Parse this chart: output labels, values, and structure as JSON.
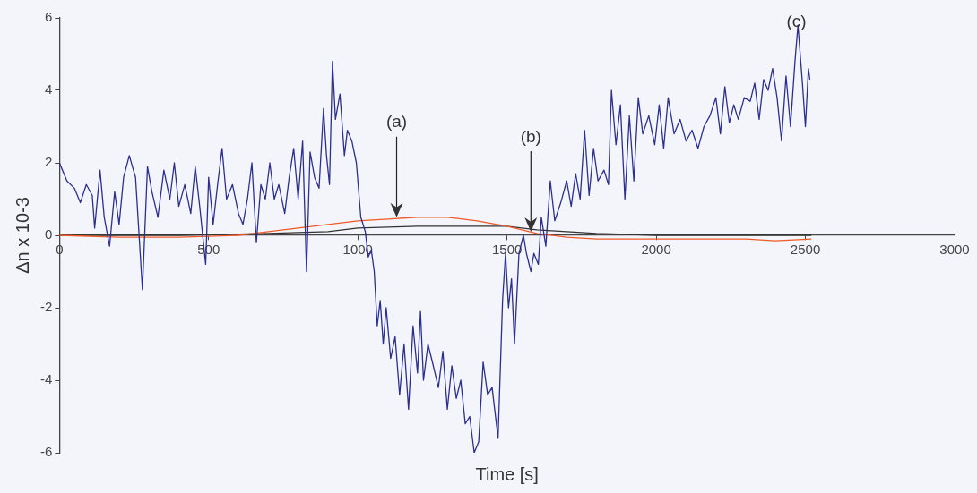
{
  "chart_data": {
    "type": "line",
    "xlabel": "Time [s]",
    "ylabel": "Δn x 10-3",
    "xlim": [
      0,
      3000
    ],
    "xticks": [
      0,
      500,
      1000,
      1500,
      2000,
      2500,
      3000
    ],
    "ylim": [
      -6,
      6
    ],
    "yticks": [
      -6,
      -4,
      -2,
      0,
      2,
      4,
      6
    ],
    "grid": false,
    "legend": false,
    "marker": "none",
    "line_style": "solid",
    "annotations": [
      {
        "text": "(a)",
        "x": 1130,
        "y": 0.5
      },
      {
        "text": "(b)",
        "x": 1580,
        "y": 0.1
      },
      {
        "text": "(c)",
        "x": 2470,
        "y": 5.8
      }
    ],
    "series": [
      {
        "color": "#2b2f8f",
        "x": [
          0,
          25,
          50,
          70,
          90,
          110,
          118,
          136,
          150,
          168,
          185,
          200,
          215,
          234,
          255,
          278,
          295,
          310,
          330,
          350,
          370,
          385,
          400,
          420,
          440,
          455,
          470,
          490,
          500,
          515,
          530,
          545,
          560,
          580,
          600,
          615,
          630,
          645,
          660,
          675,
          690,
          705,
          720,
          735,
          755,
          770,
          785,
          800,
          815,
          828,
          840,
          855,
          870,
          885,
          895,
          905,
          915,
          925,
          940,
          955,
          965,
          980,
          995,
          1010,
          1025,
          1035,
          1045,
          1055,
          1065,
          1075,
          1085,
          1095,
          1110,
          1125,
          1140,
          1155,
          1170,
          1185,
          1200,
          1210,
          1220,
          1235,
          1250,
          1270,
          1285,
          1300,
          1315,
          1330,
          1345,
          1360,
          1375,
          1390,
          1405,
          1420,
          1435,
          1450,
          1470,
          1485,
          1495,
          1505,
          1515,
          1525,
          1540,
          1555,
          1565,
          1580,
          1590,
          1605,
          1615,
          1630,
          1645,
          1660,
          1680,
          1700,
          1715,
          1730,
          1745,
          1760,
          1775,
          1790,
          1805,
          1825,
          1840,
          1850,
          1865,
          1880,
          1895,
          1910,
          1925,
          1940,
          1955,
          1975,
          1995,
          2010,
          2025,
          2040,
          2060,
          2080,
          2100,
          2120,
          2140,
          2160,
          2180,
          2200,
          2215,
          2230,
          2245,
          2260,
          2275,
          2295,
          2315,
          2330,
          2345,
          2360,
          2375,
          2390,
          2405,
          2420,
          2435,
          2450,
          2465,
          2475,
          2490,
          2500,
          2510,
          2515
        ],
        "values": [
          2.0,
          1.5,
          1.3,
          0.9,
          1.4,
          1.1,
          0.2,
          1.8,
          0.5,
          -0.3,
          1.2,
          0.3,
          1.6,
          2.2,
          1.6,
          -1.5,
          1.9,
          1.2,
          0.5,
          1.8,
          1.0,
          2.0,
          0.8,
          1.4,
          0.6,
          1.9,
          0.8,
          -0.8,
          1.6,
          0.3,
          1.4,
          2.4,
          1.0,
          1.4,
          0.6,
          0.3,
          1.0,
          2.0,
          -0.2,
          1.4,
          1.0,
          2.0,
          1.0,
          1.4,
          0.6,
          1.6,
          2.4,
          1.0,
          2.6,
          -1.0,
          2.3,
          1.6,
          1.3,
          3.5,
          2.2,
          1.4,
          4.8,
          3.2,
          3.9,
          2.2,
          2.9,
          2.6,
          2.0,
          0.5,
          0.1,
          -0.6,
          -0.4,
          -1.0,
          -2.5,
          -1.8,
          -3.0,
          -2.0,
          -3.4,
          -2.8,
          -4.4,
          -3.0,
          -4.8,
          -2.5,
          -3.8,
          -2.1,
          -4.0,
          -3.0,
          -3.5,
          -4.2,
          -3.2,
          -4.8,
          -3.6,
          -4.5,
          -4.0,
          -5.2,
          -5.0,
          -6.0,
          -5.7,
          -3.5,
          -4.4,
          -4.2,
          -5.6,
          -1.8,
          -0.5,
          -2.0,
          -1.2,
          -3.0,
          -0.5,
          0.0,
          -0.5,
          -1.0,
          -0.5,
          -0.8,
          0.5,
          -0.3,
          1.5,
          0.4,
          0.9,
          1.5,
          0.8,
          1.7,
          1.0,
          2.9,
          1.1,
          2.4,
          1.5,
          1.8,
          1.4,
          4.0,
          2.5,
          3.6,
          1.0,
          3.3,
          1.5,
          3.8,
          2.8,
          3.3,
          2.5,
          3.6,
          2.4,
          3.8,
          2.8,
          3.2,
          2.6,
          2.9,
          2.4,
          3.0,
          3.3,
          3.8,
          2.8,
          4.1,
          3.1,
          3.6,
          3.2,
          3.8,
          3.7,
          4.2,
          3.2,
          4.3,
          4.0,
          4.6,
          3.8,
          2.6,
          4.4,
          3.0,
          4.8,
          5.8,
          4.2,
          3.0,
          4.6,
          4.3
        ]
      },
      {
        "color": "#f05a28",
        "x": [
          0,
          200,
          400,
          600,
          700,
          800,
          900,
          1000,
          1100,
          1200,
          1300,
          1400,
          1500,
          1600,
          1700,
          1800,
          1900,
          2000,
          2100,
          2200,
          2300,
          2400,
          2520
        ],
        "values": [
          0,
          -0.05,
          -0.05,
          0,
          0.1,
          0.2,
          0.3,
          0.4,
          0.45,
          0.5,
          0.5,
          0.4,
          0.25,
          0.05,
          -0.05,
          -0.1,
          -0.1,
          -0.1,
          -0.1,
          -0.1,
          -0.1,
          -0.15,
          -0.1
        ]
      },
      {
        "color": "#333333",
        "x": [
          0,
          400,
          700,
          900,
          1000,
          1200,
          1400,
          1500,
          1600,
          1700,
          1800,
          2000,
          2200,
          2500,
          2520
        ],
        "values": [
          0,
          0,
          0.05,
          0.1,
          0.2,
          0.25,
          0.25,
          0.25,
          0.15,
          0.1,
          0.05,
          0,
          0,
          0,
          0
        ]
      }
    ]
  }
}
